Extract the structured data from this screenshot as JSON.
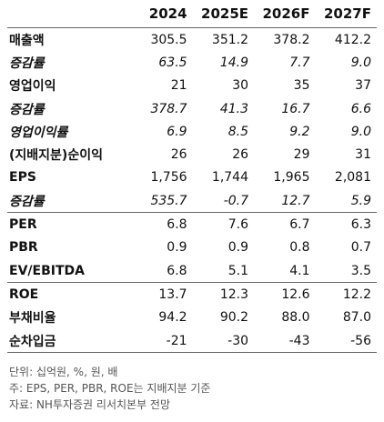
{
  "table": {
    "header": [
      "2024",
      "2025E",
      "2026F",
      "2027F"
    ],
    "rows": [
      [
        "매출액",
        "305.5",
        "351.2",
        "378.2",
        "412.2"
      ],
      [
        "증감률",
        "63.5",
        "14.9",
        "7.7",
        "9.0"
      ],
      [
        "영업이익",
        "21",
        "30",
        "35",
        "37"
      ],
      [
        "증감률",
        "378.7",
        "41.3",
        "16.7",
        "6.6"
      ],
      [
        "영업이익률",
        "6.9",
        "8.5",
        "9.2",
        "9.0"
      ],
      [
        "(지배지분)순이익",
        "26",
        "26",
        "29",
        "31"
      ],
      [
        "EPS",
        "1,756",
        "1,744",
        "1,965",
        "2,081"
      ],
      [
        "증감률",
        "535.7",
        "-0.7",
        "12.7",
        "5.9"
      ],
      [
        "PER",
        "6.8",
        "7.6",
        "6.7",
        "6.3"
      ],
      [
        "PBR",
        "0.9",
        "0.9",
        "0.8",
        "0.7"
      ],
      [
        "EV/EBITDA",
        "6.8",
        "5.1",
        "4.1",
        "3.5"
      ],
      [
        "ROE",
        "13.7",
        "12.3",
        "12.6",
        "12.2"
      ],
      [
        "부채비율",
        "94.2",
        "90.2",
        "88.0",
        "87.0"
      ],
      [
        "순차입금",
        "-21",
        "-30",
        "-43",
        "-56"
      ]
    ]
  },
  "notes": [
    "단위: 십억원, %, 원, 배",
    "주: EPS, PER, PBR, ROE는 지배지분 기준",
    "자료: NH투자증권 리서치본부 전망"
  ]
}
